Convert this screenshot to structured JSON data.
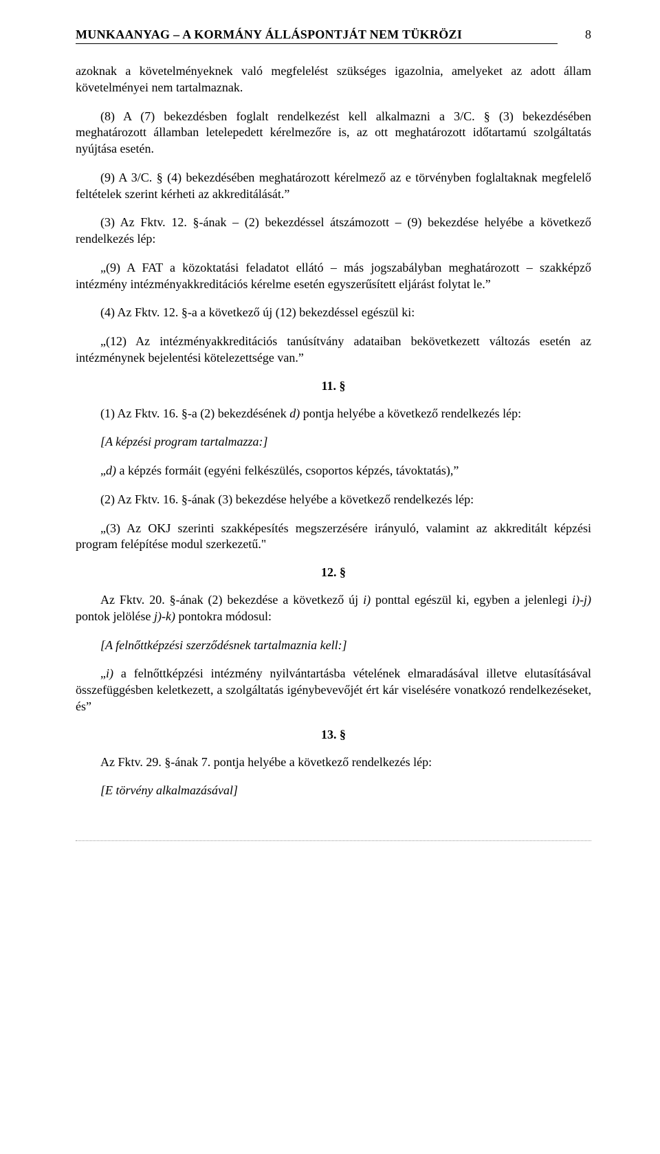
{
  "header": {
    "title": "MUNKAANYAG – A KORMÁNY ÁLLÁSPONTJÁT NEM TÜKRÖZI",
    "page_number": "8"
  },
  "paragraphs": {
    "p1": "azoknak a követelményeknek való megfelelést szükséges igazolnia, amelyeket az adott állam követelményei nem tartalmaznak.",
    "p2": "(8) A (7) bekezdésben foglalt rendelkezést kell alkalmazni a 3/C. § (3) bekezdésében meghatározott államban letelepedett kérelmezőre is, az ott meghatározott időtartamú szolgáltatás nyújtása esetén.",
    "p3": "(9) A 3/C. § (4) bekezdésében meghatározott kérelmező az e törvényben foglaltaknak megfelelő feltételek szerint kérheti az akkreditálását.”",
    "p4": "(3) Az Fktv. 12. §-ának – (2) bekezdéssel átszámozott – (9) bekezdése helyébe a következő rendelkezés lép:",
    "p5": "„(9) A FAT a közoktatási feladatot ellátó – más jogszabályban meghatározott – szakképző intézmény intézményakkreditációs kérelme esetén egyszerűsített eljárást folytat le.”",
    "p6": "(4) Az Fktv. 12. §-a a következő új (12) bekezdéssel egészül ki:",
    "p7": "„(12) Az intézményakkreditációs tanúsítvány adataiban bekövetkezett változás esetén az intézménynek bejelentési kötelezettsége van.”",
    "sec11": "11. §",
    "p8_prefix": "(1) Az Fktv. 16. §-a (2) bekezdésének ",
    "p8_italic": "d)",
    "p8_suffix": " pontja helyébe a következő rendelkezés lép:",
    "p9": "[A képzési program tartalmazza:]",
    "p10_prefix": "„",
    "p10_italic": "d)",
    "p10_suffix": " a képzés formáit (egyéni felkészülés, csoportos képzés, távoktatás),”",
    "p11": "(2) Az Fktv. 16. §-ának (3) bekezdése helyébe a következő rendelkezés lép:",
    "p12": "„(3) Az OKJ szerinti szakképesítés megszerzésére irányuló, valamint az akkreditált képzési program felépítése modul szerkezetű.\"",
    "sec12": "12. §",
    "p13_prefix": "Az Fktv. 20. §-ának (2) bekezdése a következő új ",
    "p13_i1": "i)",
    "p13_mid1": " ponttal egészül ki, egyben a jelenlegi ",
    "p13_i2": "i)-j)",
    "p13_mid2": " pontok jelölése ",
    "p13_i3": "j)-k)",
    "p13_suffix": " pontokra módosul:",
    "p14": "[A felnőttképzési szerződésnek tartalmaznia kell:]",
    "p15_prefix": "„",
    "p15_italic": "i)",
    "p15_suffix": " a felnőttképzési intézmény nyilvántartásba vételének elmaradásával illetve elutasításával összefüggésben keletkezett, a szolgáltatás igénybevevőjét ért kár viselésére vonatkozó rendelkezéseket, és”",
    "sec13": "13. §",
    "p16": "Az Fktv. 29. §-ának 7. pontja helyébe a következő rendelkezés lép:",
    "p17": "[E törvény alkalmazásával]"
  }
}
